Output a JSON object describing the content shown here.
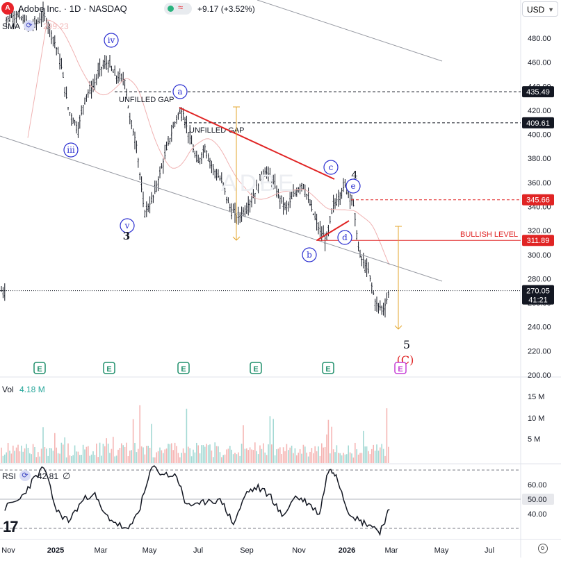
{
  "header": {
    "logo_text": "A",
    "title": "Adobe Inc. · 1D · NASDAQ",
    "change": "+9.17 (+3.52%)",
    "currency": "USD"
  },
  "indicators": {
    "sma_label": "SMA",
    "sma_value": "299.23",
    "vol_label": "Vol",
    "vol_value": "4.18 M",
    "rsi_label": "RSI",
    "rsi_value": "42.81",
    "rsi_extra": "∅"
  },
  "colors": {
    "up": "#26a69a",
    "down": "#ef5350",
    "candle": "#131722",
    "sma": "#f0b2b2",
    "channel": "#9598a1",
    "wave_circle": "#2a2ed0",
    "bullish": "#e02424",
    "target_arrow": "#e3a52b",
    "earnings": "#1f8f6b",
    "earnings_future": "#c63ed6"
  },
  "chart_data": [
    {
      "type": "line",
      "panel": "price",
      "title": "Adobe Inc. · 1D · NASDAQ",
      "x": [
        "2024-11-01",
        "2024-11-15",
        "2024-12-01",
        "2024-12-10",
        "2024-12-20",
        "2025-01-01",
        "2025-01-10",
        "2025-01-20",
        "2025-02-01",
        "2025-02-10",
        "2025-02-20",
        "2025-03-01",
        "2025-03-10",
        "2025-03-20",
        "2025-04-01",
        "2025-04-07",
        "2025-04-15",
        "2025-04-25",
        "2025-05-05",
        "2025-05-15",
        "2025-05-25",
        "2025-06-05",
        "2025-06-12",
        "2025-06-20",
        "2025-07-01",
        "2025-07-10",
        "2025-07-20",
        "2025-08-01",
        "2025-08-10",
        "2025-08-20",
        "2025-09-01",
        "2025-09-12",
        "2025-09-22",
        "2025-10-01",
        "2025-10-10",
        "2025-10-20",
        "2025-11-01",
        "2025-11-10",
        "2025-11-20",
        "2025-12-01",
        "2025-12-10",
        "2025-12-18",
        "2026-01-02",
        "2026-01-12",
        "2026-01-20",
        "2026-02-01",
        "2026-02-10",
        "2026-02-20",
        "2026-02-27"
      ],
      "y": [
        495,
        500,
        490,
        492,
        500,
        480,
        460,
        420,
        405,
        432,
        440,
        455,
        460,
        448,
        445,
        412,
        393,
        335,
        345,
        368,
        392,
        415,
        420,
        400,
        375,
        390,
        372,
        360,
        340,
        330,
        340,
        352,
        370,
        365,
        350,
        338,
        352,
        360,
        340,
        320,
        312,
        340,
        358,
        345,
        300,
        285,
        258,
        255,
        270
      ],
      "sma_label": "SMA",
      "sma_last": 299.23,
      "ylim": [
        200,
        510
      ],
      "yticks": [
        200,
        220,
        240,
        260,
        280,
        300,
        320,
        340,
        360,
        380,
        400,
        420,
        440,
        460,
        480
      ],
      "xticks": [
        "Nov",
        "2025",
        "Mar",
        "May",
        "Jul",
        "Sep",
        "Nov",
        "2026",
        "Mar",
        "May",
        "Jul"
      ],
      "price_labels": [
        {
          "value": 435.49,
          "style": "dark"
        },
        {
          "value": 409.61,
          "style": "dark"
        },
        {
          "value": 345.66,
          "style": "red"
        },
        {
          "value": 311.89,
          "style": "red"
        },
        {
          "value": 270.05,
          "style": "dark",
          "sub": "41:21"
        }
      ],
      "annotations": {
        "unfilled_gap_1": "UNFILLED GAP",
        "unfilled_gap_2": "UNFILLED GAP",
        "bullish_level": "BULLISH LEVEL",
        "waves": [
          "iv",
          "iii",
          "v",
          "3",
          "a",
          "b",
          "c",
          "d",
          "e",
          "4",
          "5",
          "(C)"
        ],
        "watermark": "ADBE"
      },
      "earnings_marker": "E"
    },
    {
      "type": "bar",
      "panel": "volume",
      "label": "Vol",
      "last": "4.18 M",
      "yticks": [
        "5 M",
        "10 M",
        "15 M"
      ]
    },
    {
      "type": "line",
      "panel": "rsi",
      "label": "RSI",
      "last": 42.81,
      "levels": [
        30,
        50,
        70
      ],
      "yticks": [
        "40.00",
        "50.00",
        "60.00"
      ],
      "x": [
        "2024-11-01",
        "2024-11-20",
        "2024-12-05",
        "2024-12-20",
        "2025-01-05",
        "2025-01-20",
        "2025-02-05",
        "2025-02-20",
        "2025-03-05",
        "2025-03-20",
        "2025-04-05",
        "2025-04-20",
        "2025-05-05",
        "2025-05-20",
        "2025-06-05",
        "2025-06-15",
        "2025-07-01",
        "2025-07-15",
        "2025-08-01",
        "2025-08-15",
        "2025-09-01",
        "2025-09-15",
        "2025-10-01",
        "2025-10-15",
        "2025-11-01",
        "2025-11-15",
        "2025-12-01",
        "2025-12-12",
        "2025-12-22",
        "2026-01-05",
        "2026-01-20",
        "2026-02-01",
        "2026-02-15",
        "2026-02-27"
      ],
      "y": [
        44,
        50,
        62,
        72,
        42,
        35,
        48,
        55,
        40,
        34,
        28,
        45,
        72,
        67,
        66,
        48,
        45,
        50,
        48,
        33,
        55,
        58,
        52,
        38,
        52,
        48,
        40,
        70,
        68,
        43,
        35,
        33,
        28,
        43
      ]
    }
  ]
}
